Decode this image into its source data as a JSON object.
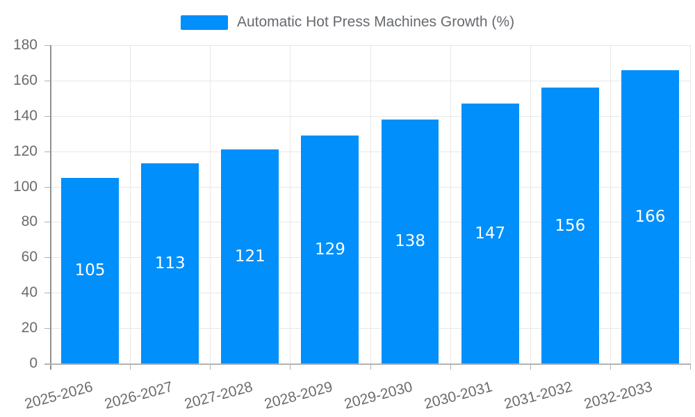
{
  "chart_data": {
    "type": "bar",
    "title": "Automatic Hot Press Machines Growth (%)",
    "legend": {
      "label": "Automatic Hot Press Machines Growth (%)",
      "position": "top",
      "swatch_color": "#008FFB"
    },
    "categories": [
      "2025-2026",
      "2026-2027",
      "2027-2028",
      "2028-2029",
      "2029-2030",
      "2030-2031",
      "2031-2032",
      "2032-2033"
    ],
    "values": [
      105,
      113,
      121,
      129,
      138,
      147,
      156,
      166
    ],
    "xlabel": "",
    "ylabel": "",
    "ylim": [
      0,
      180
    ],
    "ytick_step": 20,
    "yticks": [
      0,
      20,
      40,
      60,
      80,
      100,
      120,
      140,
      160,
      180
    ],
    "grid": true,
    "x_label_rotation": -15,
    "colors": {
      "bar": "#008FFB",
      "bar_label": "#ffffff",
      "axis_text": "#6b6b6b",
      "title_text": "#66696e",
      "grid": "#e7e7e7",
      "axis_line_y": "#8f8f8f",
      "axis_line_x": "#b3b3b3",
      "tick": "#b0b0b0",
      "background": "#ffffff"
    }
  }
}
